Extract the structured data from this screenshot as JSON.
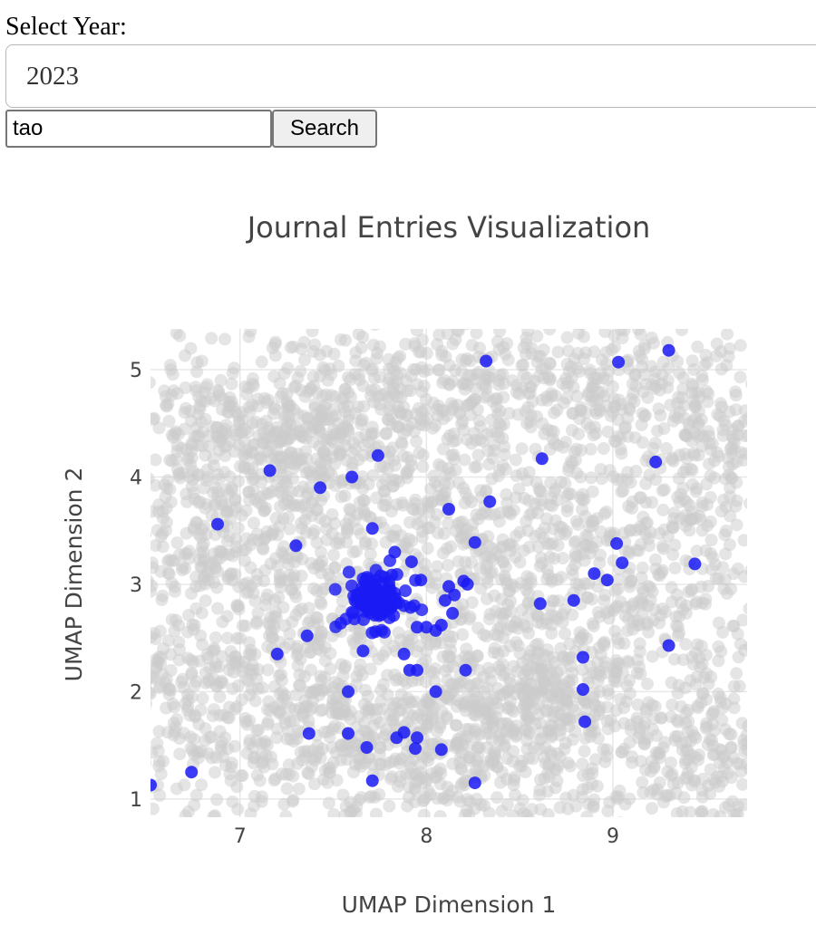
{
  "controls": {
    "year_label": "Select Year:",
    "year_value": "2023",
    "search_value": "tao",
    "search_button_label": "Search"
  },
  "chart_data": {
    "type": "scatter",
    "title": "Journal Entries Visualization",
    "xlabel": "UMAP Dimension 1",
    "ylabel": "UMAP Dimension 2",
    "xlim": [
      6.52,
      9.72
    ],
    "ylim": [
      0.83,
      5.38
    ],
    "xticks": [
      7,
      8,
      9
    ],
    "yticks": [
      1,
      2,
      3,
      4,
      5
    ],
    "grid": true,
    "legend": "none",
    "colors": {
      "background_points": "#cccccc",
      "highlight_points": "#1a1af5",
      "grid": "#e8e8e8"
    },
    "series": [
      {
        "role": "background",
        "note_density_clusters": [
          [
            7.1,
            4.4,
            0.35,
            0.25,
            220
          ],
          [
            7.5,
            3.8,
            0.35,
            0.4,
            160
          ],
          [
            6.9,
            3.3,
            0.3,
            0.45,
            160
          ],
          [
            7.6,
            1.6,
            0.35,
            0.3,
            200
          ],
          [
            8.05,
            1.45,
            0.3,
            0.3,
            170
          ],
          [
            8.4,
            2.2,
            0.35,
            0.3,
            170
          ],
          [
            8.7,
            1.8,
            0.3,
            0.3,
            170
          ],
          [
            9.5,
            1.4,
            0.25,
            0.35,
            140
          ],
          [
            9.4,
            4.1,
            0.3,
            0.5,
            160
          ],
          [
            8.9,
            3.1,
            0.35,
            0.4,
            160
          ],
          [
            8.3,
            3.6,
            0.35,
            0.45,
            170
          ],
          [
            7.8,
            4.8,
            0.35,
            0.3,
            150
          ],
          [
            8.8,
            4.8,
            0.4,
            0.3,
            150
          ],
          [
            6.75,
            1.9,
            0.25,
            0.4,
            120
          ],
          [
            7.3,
            2.6,
            0.3,
            0.35,
            130
          ]
        ],
        "uniform_count": 1300
      },
      {
        "role": "highlight",
        "cluster": {
          "center": [
            7.73,
            2.86
          ],
          "count": 110
        },
        "points": [
          [
            8.32,
            5.08
          ],
          [
            9.03,
            5.07
          ],
          [
            9.3,
            5.18
          ],
          [
            7.74,
            4.2
          ],
          [
            7.16,
            4.06
          ],
          [
            7.6,
            4.0
          ],
          [
            7.43,
            3.9
          ],
          [
            8.62,
            4.17
          ],
          [
            9.23,
            4.14
          ],
          [
            6.88,
            3.56
          ],
          [
            7.3,
            3.36
          ],
          [
            8.34,
            3.77
          ],
          [
            8.12,
            3.7
          ],
          [
            8.26,
            3.39
          ],
          [
            9.02,
            3.38
          ],
          [
            9.05,
            3.2
          ],
          [
            8.9,
            3.1
          ],
          [
            8.97,
            3.04
          ],
          [
            9.44,
            3.19
          ],
          [
            7.71,
            3.52
          ],
          [
            7.92,
            3.21
          ],
          [
            7.97,
            3.04
          ],
          [
            7.83,
            3.3
          ],
          [
            8.2,
            3.03
          ],
          [
            8.12,
            2.98
          ],
          [
            8.0,
            2.6
          ],
          [
            7.95,
            2.6
          ],
          [
            8.08,
            2.62
          ],
          [
            8.1,
            2.85
          ],
          [
            8.14,
            2.73
          ],
          [
            8.22,
            3.0
          ],
          [
            8.15,
            2.9
          ],
          [
            8.05,
            2.57
          ],
          [
            7.2,
            2.35
          ],
          [
            7.36,
            2.52
          ],
          [
            8.61,
            2.82
          ],
          [
            8.79,
            2.85
          ],
          [
            8.84,
            2.32
          ],
          [
            9.3,
            2.43
          ],
          [
            7.66,
            2.38
          ],
          [
            7.88,
            2.35
          ],
          [
            7.91,
            2.2
          ],
          [
            7.95,
            2.2
          ],
          [
            8.21,
            2.2
          ],
          [
            7.58,
            2.0
          ],
          [
            8.05,
            2.0
          ],
          [
            8.84,
            2.02
          ],
          [
            8.85,
            1.72
          ],
          [
            7.37,
            1.61
          ],
          [
            7.58,
            1.61
          ],
          [
            7.84,
            1.57
          ],
          [
            7.88,
            1.62
          ],
          [
            7.95,
            1.57
          ],
          [
            7.68,
            1.48
          ],
          [
            7.94,
            1.47
          ],
          [
            8.08,
            1.46
          ],
          [
            7.71,
            1.17
          ],
          [
            8.26,
            1.15
          ],
          [
            6.74,
            1.25
          ],
          [
            6.52,
            1.13
          ]
        ]
      }
    ]
  }
}
